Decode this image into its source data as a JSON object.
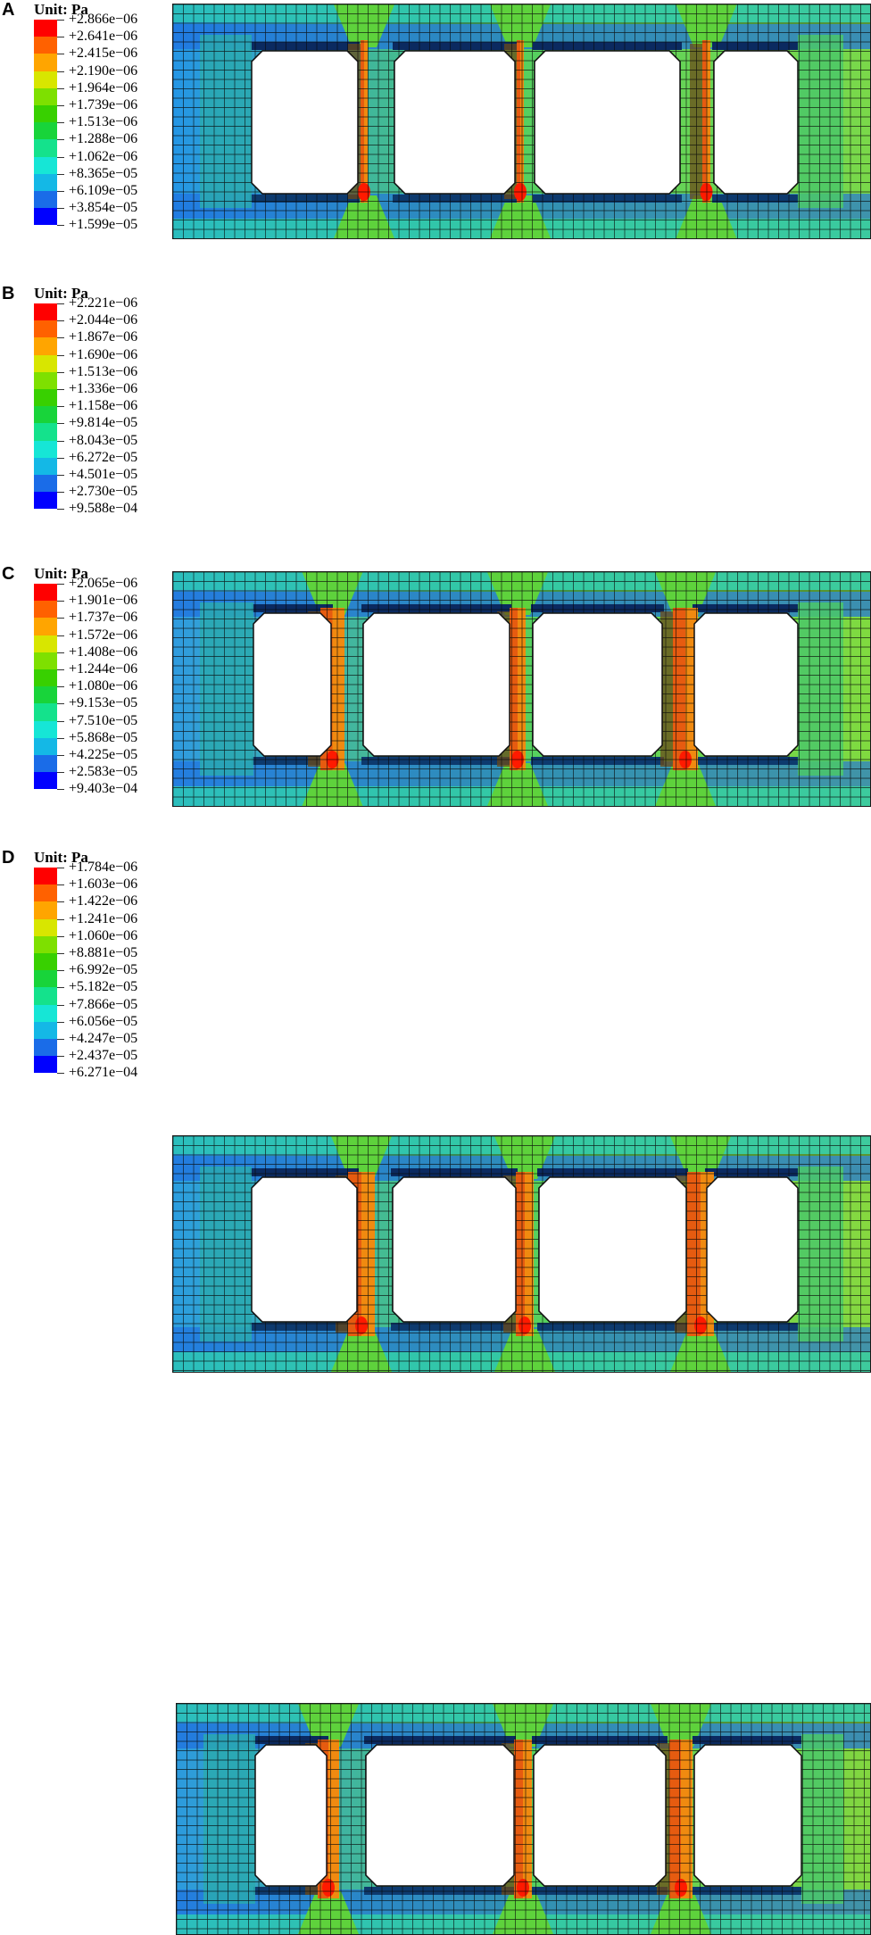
{
  "colors": [
    "#ff0000",
    "#ff6100",
    "#ffa500",
    "#d8e600",
    "#7ee000",
    "#38d000",
    "#18d43a",
    "#14e28c",
    "#16e6d6",
    "#14b8e6",
    "#1a6ce8",
    "#0000ff"
  ],
  "panels": [
    {
      "letter": "A",
      "unit": "Unit: Pa",
      "levels": [
        "+2.866e−06",
        "+2.641e−06",
        "+2.415e−06",
        "+2.190e−06",
        "+1.964e−06",
        "+1.739e−06",
        "+1.513e−06",
        "+1.288e−06",
        "+1.062e−06",
        "+8.365e−05",
        "+6.109e−05",
        "+3.854e−05",
        "+1.599e−05"
      ],
      "openings": 4
    },
    {
      "letter": "B",
      "unit": "Unit: Pa",
      "levels": [
        "+2.221e−06",
        "+2.044e−06",
        "+1.867e−06",
        "+1.690e−06",
        "+1.513e−06",
        "+1.336e−06",
        "+1.158e−06",
        "+9.814e−05",
        "+8.043e−05",
        "+6.272e−05",
        "+4.501e−05",
        "+2.730e−05",
        "+9.588e−04"
      ],
      "openings": 4
    },
    {
      "letter": "C",
      "unit": "Unit: Pa",
      "levels": [
        "+2.065e−06",
        "+1.901e−06",
        "+1.737e−06",
        "+1.572e−06",
        "+1.408e−06",
        "+1.244e−06",
        "+1.080e−06",
        "+9.153e−05",
        "+7.510e−05",
        "+5.868e−05",
        "+4.225e−05",
        "+2.583e−05",
        "+9.403e−04"
      ],
      "openings": 4
    },
    {
      "letter": "D",
      "unit": "Unit: Pa",
      "levels": [
        "+1.784e−06",
        "+1.603e−06",
        "+1.422e−06",
        "+1.241e−06",
        "+1.060e−06",
        "+8.881e−05",
        "+6.992e−05",
        "+5.182e−05",
        "+7.866e−05",
        "+6.056e−05",
        "+4.247e−05",
        "+2.437e−05",
        "+6.271e−04"
      ],
      "openings": 4
    }
  ]
}
